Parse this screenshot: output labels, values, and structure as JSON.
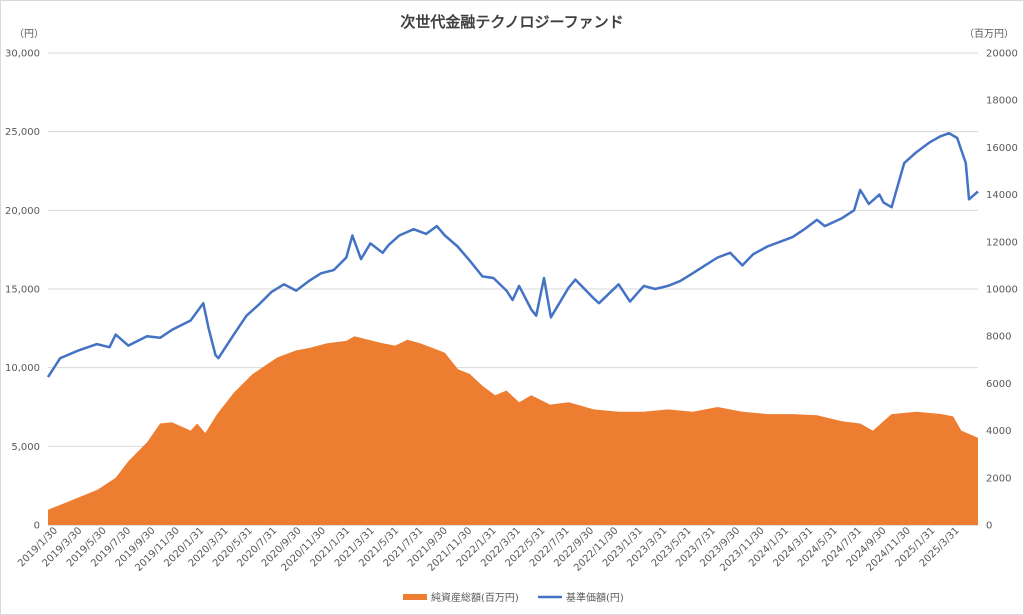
{
  "chart_data": {
    "type": "line",
    "title": "次世代金融テクノロジーファンド",
    "left_unit": "（円）",
    "right_unit": "（百万円）",
    "left_axis": {
      "min": 0,
      "max": 30000,
      "step": 5000,
      "tick_labels": [
        "0",
        "5,000",
        "10,000",
        "15,000",
        "20,000",
        "25,000",
        "30,000"
      ]
    },
    "right_axis": {
      "min": 0,
      "max": 20000,
      "step": 2000,
      "tick_labels": [
        "0",
        "2000",
        "4000",
        "6000",
        "8000",
        "10000",
        "12000",
        "14000",
        "16000",
        "18000",
        "20000"
      ]
    },
    "x_start": "2019/1/30",
    "x_end": "2025/4/30",
    "x_tick_labels": [
      "2019/1/30",
      "2019/3/30",
      "2019/5/30",
      "2019/7/30",
      "2019/9/30",
      "2019/11/30",
      "2020/1/31",
      "2020/3/31",
      "2020/5/31",
      "2020/7/31",
      "2020/9/30",
      "2020/11/30",
      "2021/1/31",
      "2021/3/31",
      "2021/5/31",
      "2021/7/31",
      "2021/9/30",
      "2021/11/30",
      "2022/1/31",
      "2022/3/31",
      "2022/5/31",
      "2022/7/31",
      "2022/9/30",
      "2022/11/30",
      "2023/1/31",
      "2023/3/31",
      "2023/5/31",
      "2023/7/31",
      "2023/9/30",
      "2023/11/30",
      "2024/1/31",
      "2024/3/31",
      "2024/5/31",
      "2024/7/31",
      "2024/9/30",
      "2024/11/30",
      "2025/1/31",
      "2025/3/31"
    ],
    "grid": true,
    "legend_position": "bottom",
    "series": [
      {
        "name": "純資産総額(百万円)",
        "type": "area",
        "axis": "right",
        "color": "#ED7D31",
        "x": [
          "2019/1/30",
          "2019/3/15",
          "2019/6/1",
          "2019/7/15",
          "2019/8/15",
          "2019/9/30",
          "2019/11/1",
          "2019/11/30",
          "2020/1/15",
          "2020/1/31",
          "2020/2/20",
          "2020/3/20",
          "2020/4/30",
          "2020/6/15",
          "2020/8/15",
          "2020/9/30",
          "2020/11/1",
          "2020/12/15",
          "2021/1/31",
          "2021/2/20",
          "2021/3/15",
          "2021/4/30",
          "2021/5/31",
          "2021/6/30",
          "2021/7/31",
          "2021/8/31",
          "2021/9/30",
          "2021/11/1",
          "2021/11/30",
          "2021/12/31",
          "2022/1/31",
          "2022/2/28",
          "2022/3/31",
          "2022/4/30",
          "2022/6/15",
          "2022/7/31",
          "2022/9/30",
          "2022/11/30",
          "2023/1/31",
          "2023/3/31",
          "2023/5/31",
          "2023/7/31",
          "2023/9/30",
          "2023/11/30",
          "2024/1/31",
          "2024/3/31",
          "2024/5/31",
          "2024/7/15",
          "2024/8/15",
          "2024/9/30",
          "2024/11/30",
          "2025/1/31",
          "2025/2/28",
          "2025/3/20",
          "2025/4/30"
        ],
        "values": [
          650,
          950,
          1500,
          2000,
          2700,
          3500,
          4300,
          4350,
          4000,
          4300,
          3900,
          4700,
          5600,
          6400,
          7100,
          7400,
          7500,
          7700,
          7800,
          8000,
          7900,
          7700,
          7600,
          7850,
          7700,
          7500,
          7300,
          6600,
          6400,
          5900,
          5500,
          5700,
          5200,
          5500,
          5100,
          5200,
          4900,
          4800,
          4800,
          4900,
          4800,
          5000,
          4800,
          4700,
          4700,
          4650,
          4400,
          4300,
          4000,
          4700,
          4800,
          4700,
          4600,
          4000,
          3700
        ]
      },
      {
        "name": "基準価額(円)",
        "type": "line",
        "axis": "left",
        "color": "#4472C4",
        "x": [
          "2019/1/30",
          "2019/3/1",
          "2019/4/15",
          "2019/5/30",
          "2019/6/30",
          "2019/7/15",
          "2019/8/15",
          "2019/9/30",
          "2019/11/1",
          "2019/11/30",
          "2020/1/15",
          "2020/2/15",
          "2020/2/28",
          "2020/3/16",
          "2020/3/23",
          "2020/4/30",
          "2020/5/31",
          "2020/6/30",
          "2020/7/31",
          "2020/8/31",
          "2020/9/30",
          "2020/10/31",
          "2020/11/30",
          "2020/12/31",
          "2021/1/31",
          "2021/2/15",
          "2021/3/8",
          "2021/3/31",
          "2021/4/30",
          "2021/5/15",
          "2021/6/10",
          "2021/7/15",
          "2021/8/15",
          "2021/9/10",
          "2021/9/30",
          "2021/10/31",
          "2021/11/30",
          "2021/12/31",
          "2022/1/27",
          "2022/2/28",
          "2022/3/15",
          "2022/3/31",
          "2022/4/30",
          "2022/5/12",
          "2022/5/31",
          "2022/6/17",
          "2022/7/31",
          "2022/8/16",
          "2022/9/30",
          "2022/10/13",
          "2022/11/30",
          "2022/12/28",
          "2023/1/31",
          "2023/2/28",
          "2023/3/31",
          "2023/4/30",
          "2023/5/31",
          "2023/6/30",
          "2023/7/31",
          "2023/8/31",
          "2023/9/30",
          "2023/10/26",
          "2023/11/30",
          "2023/12/31",
          "2024/1/31",
          "2024/2/29",
          "2024/3/31",
          "2024/4/19",
          "2024/5/31",
          "2024/6/30",
          "2024/7/15",
          "2024/8/5",
          "2024/8/31",
          "2024/9/10",
          "2024/9/30",
          "2024/10/31",
          "2024/11/30",
          "2024/12/31",
          "2025/1/27",
          "2025/2/18",
          "2025/3/10",
          "2025/3/31",
          "2025/4/8",
          "2025/4/30"
        ],
        "values": [
          9400,
          10600,
          11100,
          11500,
          11300,
          12100,
          11400,
          12000,
          11900,
          12400,
          13000,
          14100,
          12500,
          10800,
          10600,
          12100,
          13300,
          14000,
          14800,
          15300,
          14900,
          15500,
          16000,
          16200,
          17000,
          18400,
          16900,
          17900,
          17300,
          17800,
          18400,
          18800,
          18500,
          19000,
          18400,
          17700,
          16800,
          15800,
          15700,
          14900,
          14300,
          15200,
          13700,
          13300,
          15700,
          13200,
          15100,
          15600,
          14400,
          14100,
          15300,
          14200,
          15200,
          15000,
          15200,
          15500,
          16000,
          16500,
          17000,
          17300,
          16500,
          17200,
          17700,
          18000,
          18300,
          18800,
          19400,
          19000,
          19500,
          20000,
          21300,
          20400,
          21000,
          20500,
          20200,
          23000,
          23700,
          24300,
          24700,
          24900,
          24600,
          23000,
          20700,
          21200
        ]
      }
    ]
  }
}
